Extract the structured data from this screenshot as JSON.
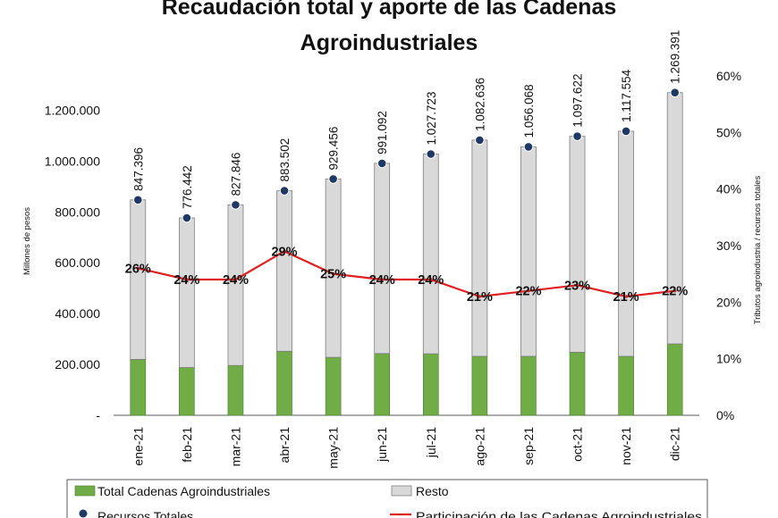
{
  "chart_data": {
    "type": "bar",
    "title": "Recaudación total y aporte de las Cadenas Agroindustriales",
    "title_lines": [
      "Recaudación total y aporte de las Cadenas",
      "Agroindustriales"
    ],
    "categories": [
      "ene-21",
      "feb-21",
      "mar-21",
      "abr-21",
      "may-21",
      "jun-21",
      "jul-21",
      "ago-21",
      "sep-21",
      "oct-21",
      "nov-21",
      "dic-21"
    ],
    "series": [
      {
        "name": "Total Cadenas Agroindustriales",
        "kind": "stacked-bar",
        "color": "#70ad47",
        "values": [
          220000,
          188000,
          196000,
          252000,
          228000,
          243000,
          242000,
          232000,
          232000,
          248000,
          232000,
          281000
        ]
      },
      {
        "name": "Resto",
        "kind": "stacked-bar",
        "color": "#d9d9d9",
        "values": [
          627396,
          588442,
          631846,
          631502,
          701456,
          748092,
          785723,
          850636,
          824068,
          849622,
          885554,
          988391
        ]
      },
      {
        "name": "Recursos Totales",
        "kind": "marker",
        "color": "#1f3864",
        "values": [
          847396,
          776442,
          827846,
          883502,
          929456,
          991092,
          1027723,
          1082636,
          1056068,
          1097622,
          1117554,
          1269391
        ],
        "labels": [
          "847.396",
          "776.442",
          "827.846",
          "883.502",
          "929.456",
          "991.092",
          "1.027.723",
          "1.082.636",
          "1.056.068",
          "1.097.622",
          "1.117.554",
          "1.269.391"
        ]
      },
      {
        "name": "Participación de las Cadenas Agroindustriales",
        "kind": "line",
        "axis": "secondary",
        "color": "#e02020",
        "values": [
          26,
          24,
          24,
          29,
          25,
          24,
          24,
          21,
          22,
          23,
          21,
          22
        ],
        "labels": [
          "26%",
          "24%",
          "24%",
          "29%",
          "25%",
          "24%",
          "24%",
          "21%",
          "22%",
          "23%",
          "21%",
          "22%"
        ]
      }
    ],
    "ylabel": "Millones de pesos",
    "ylim": [
      0,
      1300000
    ],
    "y_ticks": [
      0,
      200000,
      400000,
      600000,
      800000,
      1000000,
      1200000
    ],
    "y_tick_labels": [
      "-",
      "200.000",
      "400.000",
      "600.000",
      "800.000",
      "1.000.000",
      "1.200.000"
    ],
    "y2label": "Tributos agroindustria / recursos totales",
    "y2lim": [
      0,
      60
    ],
    "y2_ticks": [
      0,
      10,
      20,
      30,
      40,
      50,
      60
    ],
    "y2_tick_labels": [
      "0%",
      "10%",
      "20%",
      "30%",
      "40%",
      "50%",
      "60%"
    ],
    "grid": false,
    "legend_position": "bottom"
  }
}
